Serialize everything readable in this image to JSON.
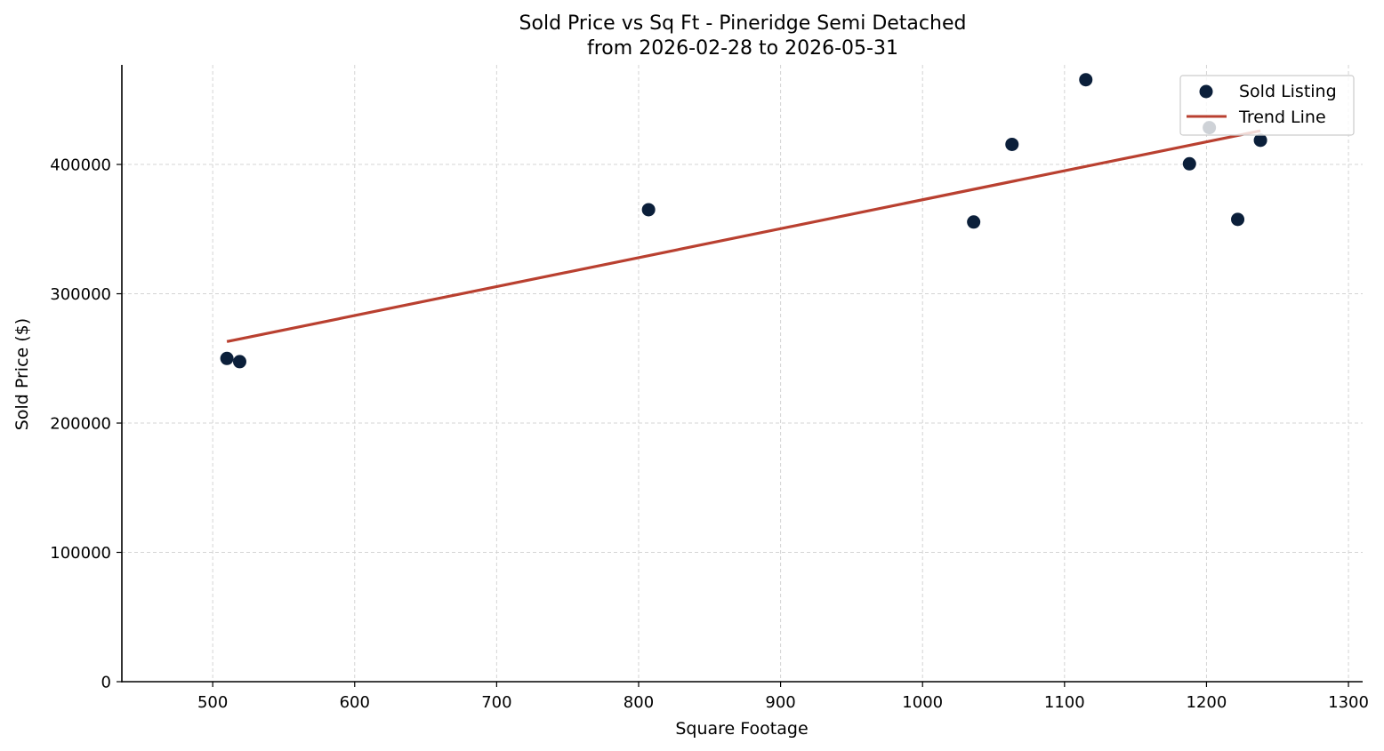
{
  "chart_data": {
    "type": "scatter",
    "title": "Sold Price vs Sq Ft - Pineridge Semi Detached",
    "subtitle": "from 2026-02-28 to 2026-05-31",
    "xlabel": "Square Footage",
    "ylabel": "Sold Price ($)",
    "xlim": [
      436,
      1310
    ],
    "ylim": [
      0,
      477000
    ],
    "x_ticks": [
      500,
      600,
      700,
      800,
      900,
      1000,
      1100,
      1200,
      1300
    ],
    "y_ticks": [
      0,
      100000,
      200000,
      300000,
      400000
    ],
    "x_tick_labels": [
      "500",
      "600",
      "700",
      "800",
      "900",
      "1000",
      "1100",
      "1200",
      "1300"
    ],
    "y_tick_labels": [
      "0",
      "100000",
      "200000",
      "300000",
      "400000"
    ],
    "grid": true,
    "legend_position": "top-right",
    "series": [
      {
        "name": "Sold Listing",
        "type": "scatter",
        "color": "#0b1f3a",
        "points": [
          {
            "x": 510,
            "y": 250000
          },
          {
            "x": 519,
            "y": 247500
          },
          {
            "x": 807,
            "y": 365000
          },
          {
            "x": 1036,
            "y": 355500
          },
          {
            "x": 1063,
            "y": 415500
          },
          {
            "x": 1115,
            "y": 465500
          },
          {
            "x": 1188,
            "y": 400500
          },
          {
            "x": 1202,
            "y": 428500
          },
          {
            "x": 1222,
            "y": 357500
          },
          {
            "x": 1238,
            "y": 418700
          }
        ]
      },
      {
        "name": "Trend Line",
        "type": "line",
        "color": "#b94030",
        "points": [
          {
            "x": 510,
            "y": 263000
          },
          {
            "x": 1238,
            "y": 426000
          }
        ]
      }
    ]
  }
}
